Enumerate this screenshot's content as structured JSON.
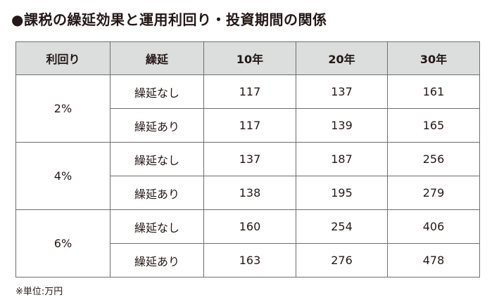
{
  "title": "●課税の繰延効果と運用利回り・投資期間の関係",
  "table": {
    "headers": [
      "利回り",
      "繰延",
      "10年",
      "20年",
      "30年"
    ],
    "groups": [
      {
        "rate": "2%",
        "rows": [
          {
            "label": "繰延なし",
            "values": [
              "117",
              "137",
              "161"
            ]
          },
          {
            "label": "繰延あり",
            "values": [
              "117",
              "139",
              "165"
            ]
          }
        ]
      },
      {
        "rate": "4%",
        "rows": [
          {
            "label": "繰延なし",
            "values": [
              "137",
              "187",
              "256"
            ]
          },
          {
            "label": "繰延あり",
            "values": [
              "138",
              "195",
              "279"
            ]
          }
        ]
      },
      {
        "rate": "6%",
        "rows": [
          {
            "label": "繰延なし",
            "values": [
              "160",
              "254",
              "406"
            ]
          },
          {
            "label": "繰延あり",
            "values": [
              "163",
              "276",
              "478"
            ]
          }
        ]
      }
    ]
  },
  "footnote": "※単位:万円",
  "colors": {
    "header_bg": "#dcdddd",
    "border": "#6e6e6e",
    "text": "#231815"
  }
}
